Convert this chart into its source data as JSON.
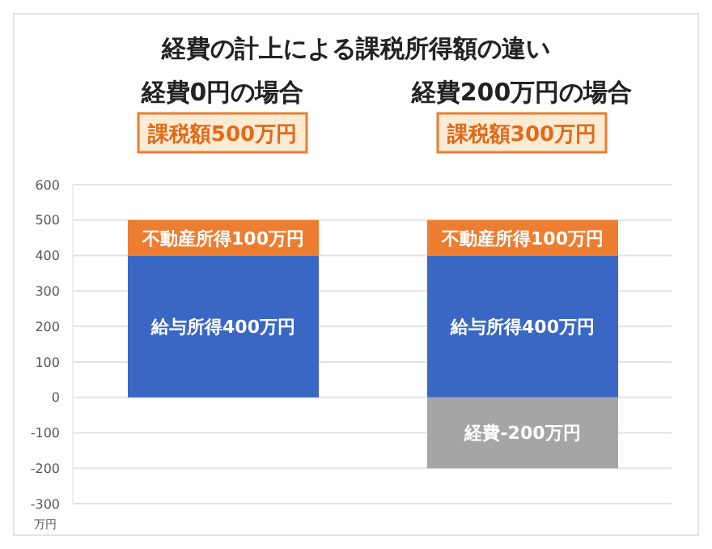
{
  "chart_data": {
    "type": "bar",
    "title": "経費の計上による課税所得額の違い",
    "ylabel": "万円",
    "categories": [
      "経費0円の場合",
      "経費200万円の場合"
    ],
    "annotations": [
      "課税額500万円",
      "課税額300万円"
    ],
    "stacked": true,
    "series": [
      {
        "color": "#3a66c4",
        "values": [
          400,
          400
        ],
        "value_labels": [
          "給与所得400万円",
          "給与所得400万円"
        ]
      },
      {
        "color": "#ed7d31",
        "values": [
          100,
          100
        ],
        "value_labels": [
          "不動産所得100万円",
          "不動産所得100万円"
        ]
      },
      {
        "color": "#a5a5a5",
        "values": [
          null,
          -200
        ],
        "value_labels": [
          null,
          "経費-200万円"
        ]
      }
    ],
    "ylim": [
      -300,
      600
    ],
    "yticks": [
      -300,
      -200,
      -100,
      0,
      100,
      200,
      300,
      400,
      500,
      600
    ],
    "grid": "y"
  }
}
